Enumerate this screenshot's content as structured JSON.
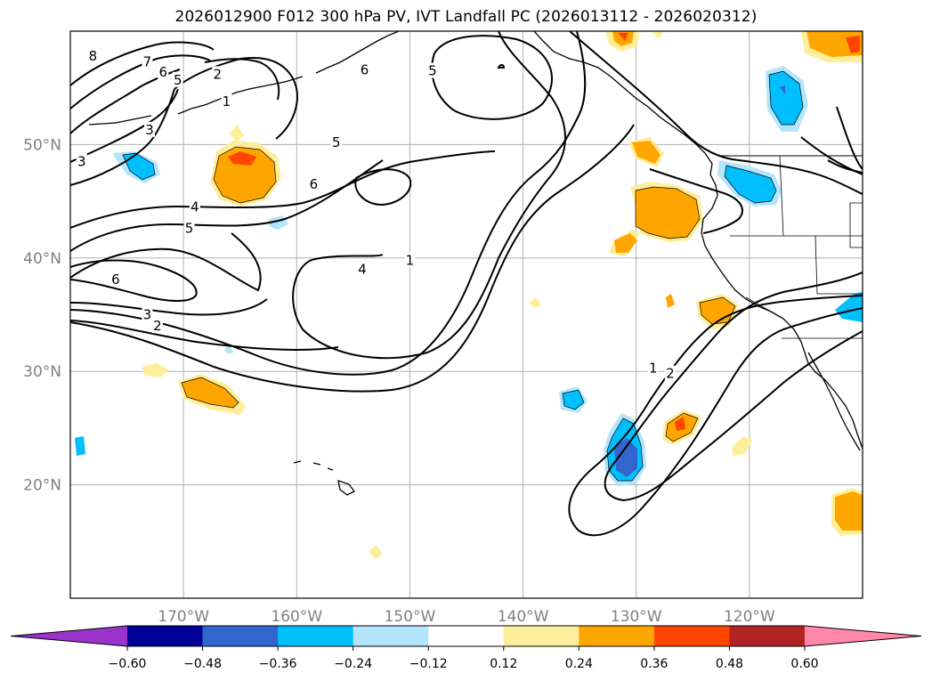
{
  "title": "2026012900 F012 300 hPa PV, IVT Landfall PC (2026013112 - 2026020312)",
  "map": {
    "lon_range": [
      -180,
      -110
    ],
    "lat_range": [
      10,
      60
    ],
    "lon_ticks": [
      {
        "lon": -170,
        "label": "170°W"
      },
      {
        "lon": -160,
        "label": "160°W"
      },
      {
        "lon": -150,
        "label": "150°W"
      },
      {
        "lon": -140,
        "label": "140°W"
      },
      {
        "lon": -130,
        "label": "130°W"
      },
      {
        "lon": -120,
        "label": "120°W"
      }
    ],
    "lat_ticks": [
      {
        "lat": 50,
        "label": "50°N"
      },
      {
        "lat": 40,
        "label": "40°N"
      },
      {
        "lat": 30,
        "label": "30°N"
      },
      {
        "lat": 20,
        "label": "20°N"
      }
    ],
    "contour_labels": [
      {
        "text": "8",
        "lon": -178.0,
        "lat": 57.8
      },
      {
        "text": "7",
        "lon": -173.2,
        "lat": 57.3
      },
      {
        "text": "6",
        "lon": -171.8,
        "lat": 56.4
      },
      {
        "text": "5",
        "lon": -170.5,
        "lat": 55.7
      },
      {
        "text": "2",
        "lon": -167.0,
        "lat": 56.2
      },
      {
        "text": "1",
        "lon": -166.2,
        "lat": 53.8
      },
      {
        "text": "3",
        "lon": -173.0,
        "lat": 51.3
      },
      {
        "text": "3",
        "lon": -179.0,
        "lat": 48.5
      },
      {
        "text": "6",
        "lon": -154.0,
        "lat": 56.6
      },
      {
        "text": "5",
        "lon": -148.0,
        "lat": 56.5
      },
      {
        "text": "5",
        "lon": -156.5,
        "lat": 50.2
      },
      {
        "text": "6",
        "lon": -158.5,
        "lat": 46.5
      },
      {
        "text": "4",
        "lon": -169.0,
        "lat": 44.5
      },
      {
        "text": "5",
        "lon": -169.5,
        "lat": 42.6
      },
      {
        "text": "6",
        "lon": -176.0,
        "lat": 38.1
      },
      {
        "text": "3",
        "lon": -173.2,
        "lat": 35.0
      },
      {
        "text": "2",
        "lon": -172.3,
        "lat": 34.0
      },
      {
        "text": "4",
        "lon": -154.2,
        "lat": 39.0
      },
      {
        "text": "1",
        "lon": -150.0,
        "lat": 39.8
      },
      {
        "text": "1",
        "lon": -128.5,
        "lat": 30.3
      },
      {
        "text": "2",
        "lon": -127.0,
        "lat": 29.8
      }
    ]
  },
  "colorbar": {
    "colors": [
      "#9933cc",
      "#000099",
      "#3366cc",
      "#00bfff",
      "#b3e5fc",
      "#ffffff",
      "#ffee99",
      "#ffa500",
      "#ff4500",
      "#b22222",
      "#ff88aa"
    ],
    "tick_labels": [
      "−0.60",
      "−0.48",
      "−0.36",
      "−0.24",
      "−0.12",
      "0.12",
      "0.24",
      "0.36",
      "0.48",
      "0.60"
    ]
  }
}
